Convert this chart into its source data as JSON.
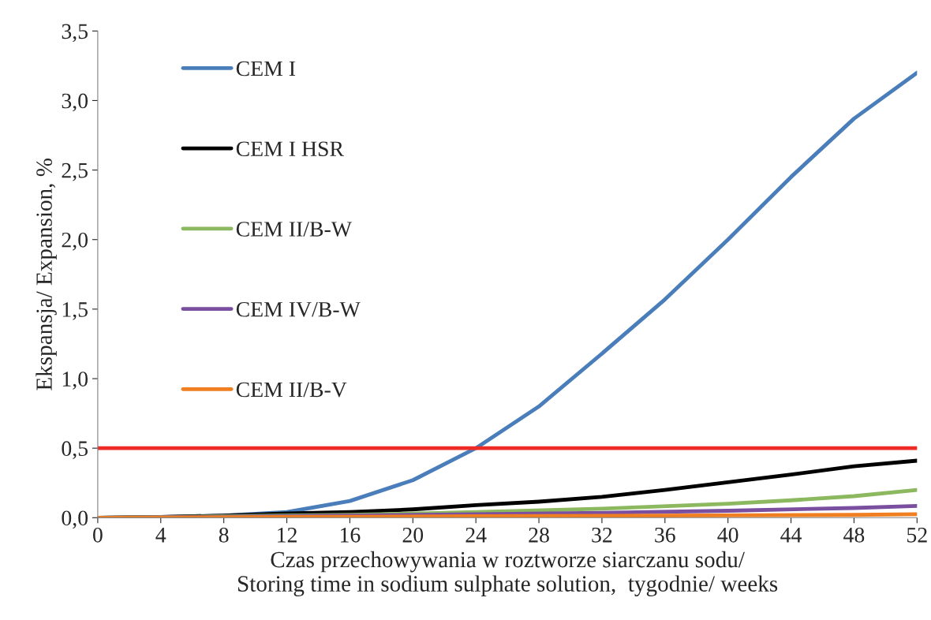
{
  "chart_data": {
    "type": "line",
    "xlabel": "Czas przechowywania w roztworze siarczanu sodu/\nStoring time in sodium sulphate solution,  tygodnie/ weeks",
    "ylabel": "Ekspansja/ Expansion, %",
    "xlim": [
      0,
      52
    ],
    "xticks": [
      0,
      4,
      8,
      12,
      16,
      20,
      24,
      28,
      32,
      36,
      40,
      44,
      48,
      52
    ],
    "ylim": [
      0,
      3.5
    ],
    "yticks": [
      {
        "value": 0,
        "label": "0,0"
      },
      {
        "value": 0.5,
        "label": "0,5"
      },
      {
        "value": 1,
        "label": "1,0"
      },
      {
        "value": 1.5,
        "label": "1,5"
      },
      {
        "value": 2,
        "label": "2,0"
      },
      {
        "value": 2.5,
        "label": "2,5"
      },
      {
        "value": 3,
        "label": "3,0"
      },
      {
        "value": 3.5,
        "label": "3,5"
      }
    ],
    "grid": false,
    "legend": "top left",
    "marker": "none",
    "line_style": "solid",
    "series": [
      {
        "name": "CEM I",
        "color": "#4a7ebb",
        "x": [
          0,
          4,
          8,
          12,
          16,
          20,
          24,
          28,
          32,
          36,
          40,
          44,
          48,
          52
        ],
        "values": [
          0,
          0.005,
          0.015,
          0.04,
          0.12,
          0.27,
          0.5,
          0.8,
          1.18,
          1.57,
          2.0,
          2.45,
          2.87,
          3.2
        ]
      },
      {
        "name": "CEM I HSR",
        "color": "#000000",
        "x": [
          0,
          4,
          8,
          12,
          16,
          20,
          24,
          28,
          32,
          36,
          40,
          44,
          48,
          52
        ],
        "values": [
          0,
          0.005,
          0.015,
          0.03,
          0.04,
          0.06,
          0.09,
          0.115,
          0.15,
          0.2,
          0.255,
          0.31,
          0.37,
          0.41
        ]
      },
      {
        "name": "CEM II/B-W",
        "color": "#8cb860",
        "x": [
          0,
          8,
          16,
          24,
          32,
          40,
          44,
          48,
          52
        ],
        "values": [
          0,
          0.01,
          0.02,
          0.04,
          0.065,
          0.1,
          0.125,
          0.155,
          0.2
        ]
      },
      {
        "name": "CEM IV/B-W",
        "color": "#7b4fa0",
        "x": [
          0,
          12,
          24,
          32,
          40,
          48,
          52
        ],
        "values": [
          0,
          0.01,
          0.025,
          0.035,
          0.05,
          0.07,
          0.085
        ]
      },
      {
        "name": "CEM II/B-V",
        "color": "#f07f22",
        "x": [
          0,
          12,
          24,
          36,
          48,
          52
        ],
        "values": [
          0,
          0.005,
          0.01,
          0.015,
          0.02,
          0.025
        ]
      }
    ],
    "ref_lines": [
      {
        "axis": "y",
        "value": 0.5,
        "color": "#ee2a24",
        "line_style": "solid"
      }
    ]
  }
}
